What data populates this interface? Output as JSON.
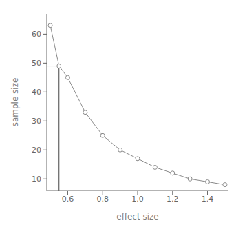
{
  "chart_data": {
    "type": "line",
    "x": [
      0.5,
      0.55,
      0.6,
      0.7,
      0.8,
      0.9,
      1.0,
      1.1,
      1.2,
      1.3,
      1.4,
      1.5
    ],
    "values": [
      63,
      49,
      45,
      33,
      25,
      20,
      17,
      14,
      12,
      10,
      9,
      8
    ],
    "color": "#888888",
    "marker": "o",
    "line_style": "solid",
    "reference": {
      "x": 0.55,
      "y": 49,
      "color": "#444444"
    },
    "xlabel": "effect size",
    "ylabel": "sample size",
    "xlim": [
      0.48,
      1.52
    ],
    "ylim": [
      6,
      67
    ],
    "xticks": [
      0.6,
      0.8,
      {
        "value": 1.0,
        "label": "1.0"
      },
      1.2,
      1.4
    ],
    "yticks": [
      10,
      20,
      30,
      40,
      50,
      60
    ],
    "grid": false
  }
}
